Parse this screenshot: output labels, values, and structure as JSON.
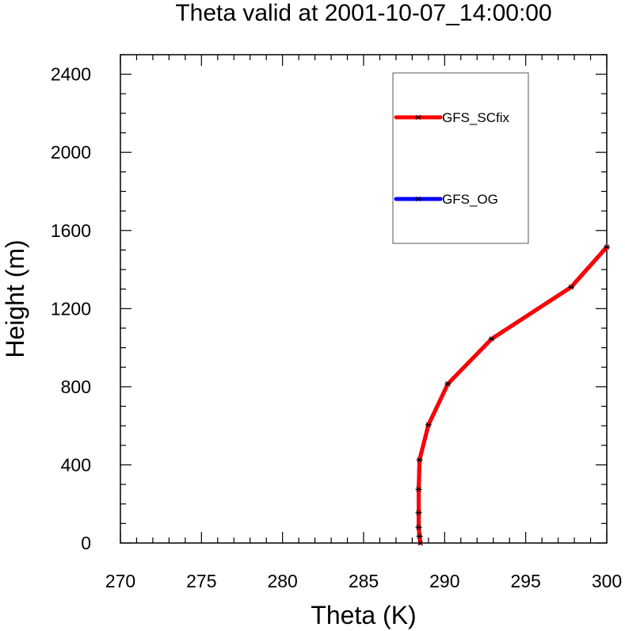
{
  "chart_data": {
    "type": "line",
    "title": "Theta valid at 2001-10-07_14:00:00",
    "xlabel": "Theta (K)",
    "ylabel": "Height (m)",
    "xlim": [
      270,
      300
    ],
    "ylim": [
      0,
      2500
    ],
    "xticks": [
      "270",
      "275",
      "280",
      "285",
      "290",
      "295",
      "300"
    ],
    "yticks": [
      "0",
      "400",
      "800",
      "1200",
      "1600",
      "2000",
      "2400"
    ],
    "grid": false,
    "legend_position": "top-right",
    "series": [
      {
        "name": "GFS_SCfix",
        "color": "#ff0000",
        "marker": "asterisk",
        "x": [
          288.5,
          288.45,
          288.4,
          288.4,
          288.4,
          288.45,
          289.0,
          290.2,
          292.9,
          297.8,
          300.0
        ],
        "y": [
          0,
          35,
          80,
          155,
          275,
          425,
          605,
          815,
          1045,
          1310,
          1515
        ]
      },
      {
        "name": "GFS_OG",
        "color": "#0000ff",
        "marker": "asterisk",
        "x": [
          288.5,
          288.45,
          288.4,
          288.4,
          288.4,
          288.45,
          289.0,
          290.2,
          292.9,
          297.8,
          300.0
        ],
        "y": [
          0,
          35,
          80,
          155,
          275,
          425,
          605,
          815,
          1045,
          1310,
          1515
        ]
      }
    ]
  }
}
